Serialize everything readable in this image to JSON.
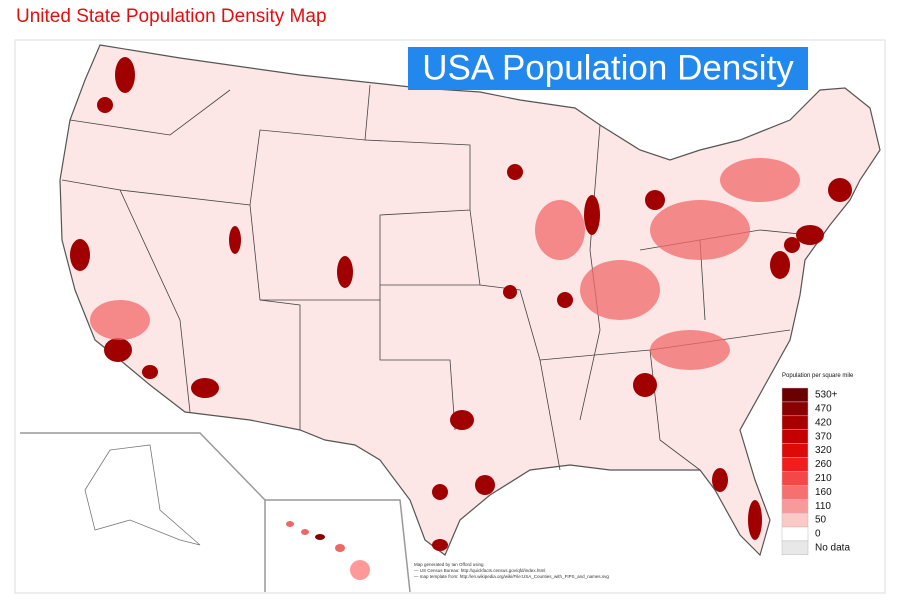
{
  "header": {
    "title": "United State Population Density Map"
  },
  "map": {
    "title": "USA Population Density",
    "legend": {
      "title": "Population per square mile",
      "items": [
        {
          "label": "530+",
          "color": "#6b0000"
        },
        {
          "label": "470",
          "color": "#8b0000"
        },
        {
          "label": "420",
          "color": "#a80000"
        },
        {
          "label": "370",
          "color": "#c40000"
        },
        {
          "label": "320",
          "color": "#dd0a0a"
        },
        {
          "label": "260",
          "color": "#f01e1e"
        },
        {
          "label": "210",
          "color": "#f44848"
        },
        {
          "label": "160",
          "color": "#f77070"
        },
        {
          "label": "110",
          "color": "#f99a9a"
        },
        {
          "label": "50",
          "color": "#fcc8c8"
        },
        {
          "label": "0",
          "color": "#ffffff"
        },
        {
          "label": "No data",
          "color": "#e8e8e8"
        }
      ]
    },
    "credits": [
      "Map generated by Ian Offord using",
      "— US Census Bureau: http://quickfacts.census.gov/qfd/index.html",
      "— map template from: http://en.wikipedia.org/wiki/File:USA_Counties_with_FIPS_and_names.svg"
    ]
  }
}
